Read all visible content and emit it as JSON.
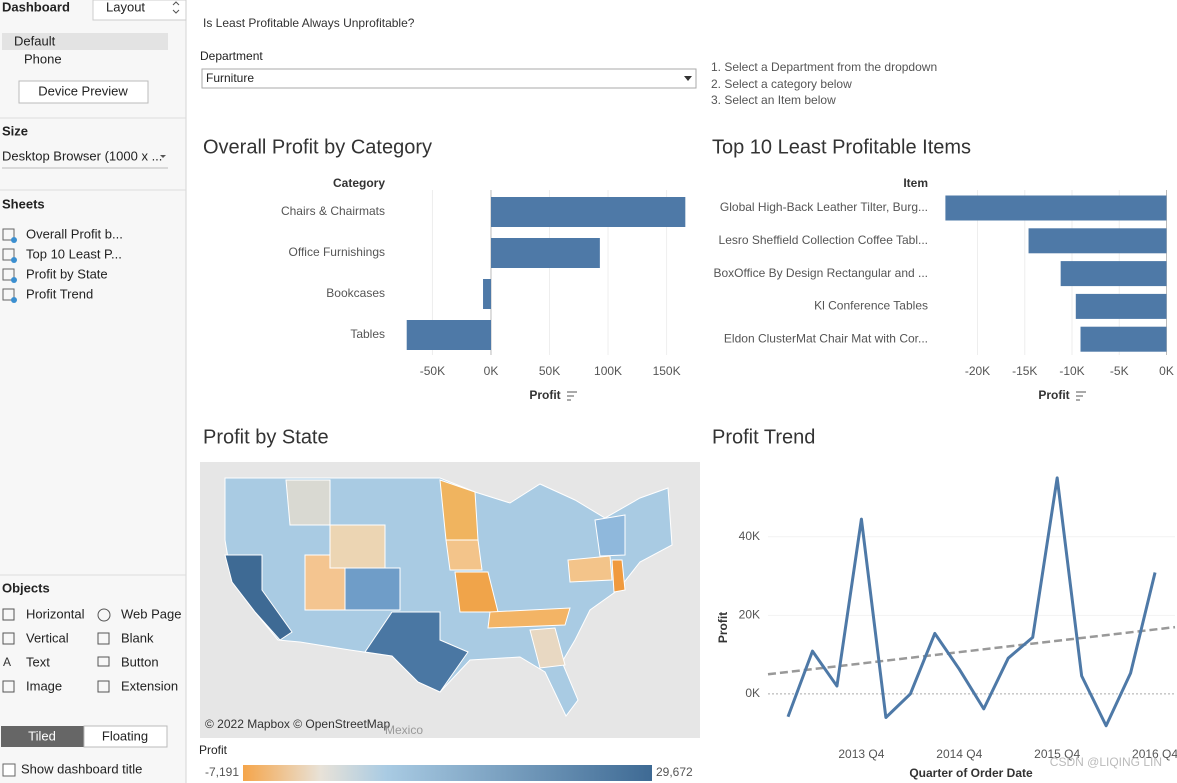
{
  "sidebar": {
    "tab": "Dashboard",
    "layout_tab": "Layout",
    "devices": [
      "Default",
      "Phone"
    ],
    "device_preview": "Device Preview",
    "size_heading": "Size",
    "size_value": "Desktop Browser (1000 x ...",
    "sheets_heading": "Sheets",
    "sheets": [
      "Overall Profit b...",
      "Top 10 Least P...",
      "Profit by State",
      "Profit Trend"
    ],
    "objects_heading": "Objects",
    "objects": [
      "Horizontal",
      "Web Page",
      "Vertical",
      "Blank",
      "Text",
      "Button",
      "Image",
      "Extension"
    ],
    "tiled": "Tiled",
    "floating": "Floating",
    "show_title": "Show dashboard title"
  },
  "dashboard": {
    "title": "Is Least Profitable Always Unprofitable?",
    "filter_label": "Department",
    "filter_value": "Furniture",
    "instructions": [
      "1. Select a Department from the dropdown",
      "2. Select a category below",
      "3. Select an Item below"
    ]
  },
  "chart_data": [
    {
      "type": "bar",
      "title": "Overall Profit by Category",
      "category_label": "Category",
      "x_label": "Profit",
      "categories": [
        "Chairs & Chairmats",
        "Office Furnishings",
        "Bookcases",
        "Tables"
      ],
      "values": [
        166000,
        93000,
        -6800,
        -72000
      ],
      "color": "#4e79a7",
      "xlim": [
        -82000,
        170000
      ],
      "xticks": [
        {
          "value": -50000,
          "label": "-50K"
        },
        {
          "value": 0,
          "label": "0K"
        },
        {
          "value": 50000,
          "label": "50K"
        },
        {
          "value": 100000,
          "label": "100K"
        },
        {
          "value": 150000,
          "label": "150K"
        }
      ],
      "grid": true
    },
    {
      "type": "bar",
      "title": "Top 10 Least Profitable Items",
      "category_label": "Item",
      "x_label": "Profit",
      "categories": [
        "Global High-Back Leather Tilter, Burg...",
        "Lesro Sheffield Collection Coffee Tabl...",
        "BoxOffice By Design Rectangular and ...",
        "Kl Conference Tables",
        "Eldon ClusterMat Chair Mat with Cor..."
      ],
      "values": [
        -23400,
        -14600,
        -11200,
        -9600,
        -9100
      ],
      "color": "#4e79a7",
      "xlim": [
        -24500,
        900
      ],
      "xticks": [
        {
          "value": -20000,
          "label": "-20K"
        },
        {
          "value": -15000,
          "label": "-15K"
        },
        {
          "value": -10000,
          "label": "-10K"
        },
        {
          "value": -5000,
          "label": "-5K"
        },
        {
          "value": 0,
          "label": "0K"
        }
      ],
      "grid": true
    },
    {
      "type": "line",
      "title": "Profit Trend",
      "x_label": "Quarter of Order Date",
      "y_label": "Profit",
      "categories": [
        null,
        null,
        null,
        "2013 Q4",
        null,
        null,
        null,
        "2014 Q4",
        null,
        null,
        null,
        "2015 Q4",
        null,
        null,
        null,
        "2016 Q4"
      ],
      "values": [
        -5800,
        10900,
        2000,
        44500,
        -6000,
        0,
        15400,
        6300,
        -3800,
        9100,
        14400,
        55000,
        4600,
        -8100,
        5300,
        30900
      ],
      "color": "#4e79a7",
      "trendline": {
        "values": [
          5000,
          17000
        ],
        "color": "#999999"
      },
      "ylim": [
        -13000,
        57000
      ],
      "yticks": [
        {
          "value": 0,
          "label": "0K"
        },
        {
          "value": 20000,
          "label": "20K"
        },
        {
          "value": 40000,
          "label": "40K"
        }
      ]
    }
  ],
  "map": {
    "title": "Profit by State",
    "attribution": "© 2022 Mapbox © OpenStreetMap",
    "place_label": "Mexico",
    "legend": {
      "title": "Profit",
      "min": {
        "value": -7191,
        "label": "-7,191"
      },
      "max": {
        "value": 29672,
        "label": "29,672"
      },
      "low_color": "#f5a54a",
      "high_color": "#3e6a94"
    }
  },
  "watermark": "CSDN @LIQING LIN"
}
